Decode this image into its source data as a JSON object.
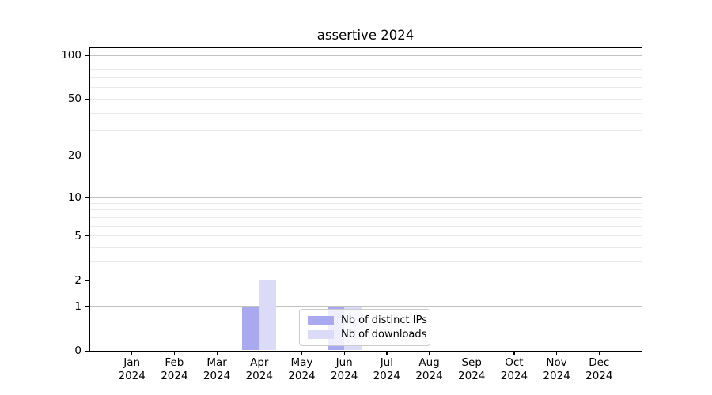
{
  "chart_data": {
    "type": "bar",
    "title": "assertive 2024",
    "months": [
      "Jan",
      "Feb",
      "Mar",
      "Apr",
      "May",
      "Jun",
      "Jul",
      "Aug",
      "Sep",
      "Oct",
      "Nov",
      "Dec"
    ],
    "year": "2024",
    "series": [
      {
        "name": "Nb of distinct IPs",
        "key": "distinct-ips",
        "color": "#a9a9f0",
        "values": [
          0,
          0,
          0,
          1,
          0,
          1,
          0,
          0,
          0,
          0,
          0,
          0
        ]
      },
      {
        "name": "Nb of downloads",
        "key": "downloads",
        "color": "#dbdbf8",
        "values": [
          0,
          0,
          0,
          2,
          0,
          1,
          0,
          0,
          0,
          0,
          0,
          0
        ]
      }
    ],
    "yscale": "log1p",
    "yticks": [
      0,
      1,
      2,
      5,
      10,
      20,
      50,
      100
    ],
    "major_gridlines": [
      1,
      10,
      100
    ],
    "minor_gridlines": [
      2,
      3,
      4,
      5,
      6,
      7,
      8,
      9,
      20,
      30,
      40,
      50,
      60,
      70,
      80,
      90
    ],
    "ylim": [
      0,
      113
    ],
    "grid": true,
    "legend_position": "lower center"
  },
  "legend": {
    "items": [
      {
        "label": "Nb of distinct IPs"
      },
      {
        "label": "Nb of downloads"
      }
    ]
  }
}
